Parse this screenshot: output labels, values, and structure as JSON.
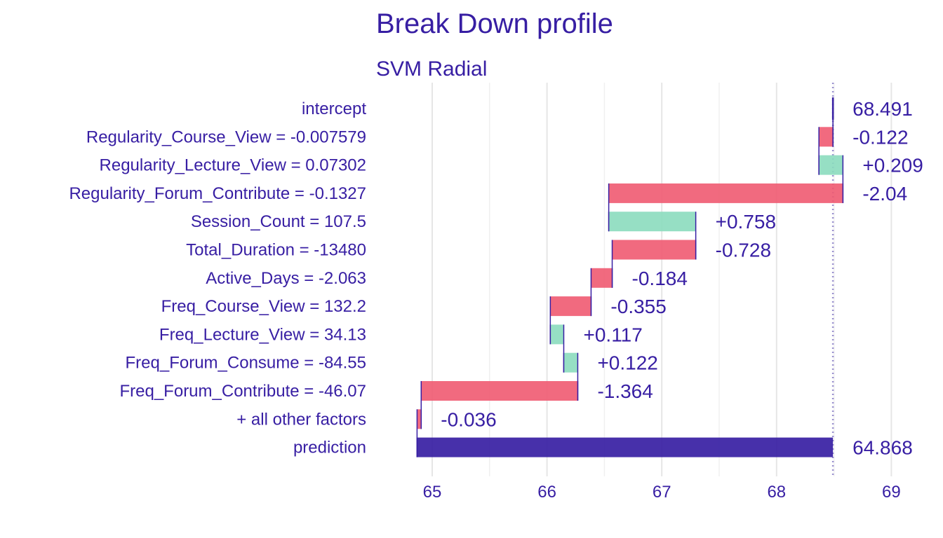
{
  "chart_data": {
    "type": "bar",
    "title": "Break Down profile",
    "subtitle": "SVM Radial",
    "xlabel": "",
    "ylabel": "",
    "xlim": [
      64.86,
      69.1
    ],
    "xticks": [
      "65",
      "66",
      "67",
      "68",
      "69"
    ],
    "grid": true,
    "legend": "none",
    "intercept_value": 68.491,
    "prediction_value": 64.868,
    "colors": {
      "positive": "#8bdcbe",
      "negative": "#f05a71",
      "prediction": "#371ea3",
      "text": "#371ea3",
      "grid": "#e6e6e6",
      "reference_line": "#9b91cf"
    },
    "rows": [
      {
        "label": "intercept",
        "kind": "intercept",
        "start": 68.491,
        "end": 68.491,
        "value_label": "68.491"
      },
      {
        "label": "Regularity_Course_View = -0.007579",
        "kind": "negative",
        "start": 68.491,
        "end": 68.369,
        "value_label": "-0.122"
      },
      {
        "label": "Regularity_Lecture_View = 0.07302",
        "kind": "positive",
        "start": 68.369,
        "end": 68.578,
        "value_label": "+0.209"
      },
      {
        "label": "Regularity_Forum_Contribute = -0.1327",
        "kind": "negative",
        "start": 68.578,
        "end": 66.538,
        "value_label": "-2.04"
      },
      {
        "label": "Session_Count = 107.5",
        "kind": "positive",
        "start": 66.538,
        "end": 67.296,
        "value_label": "+0.758"
      },
      {
        "label": "Total_Duration = -13480",
        "kind": "negative",
        "start": 67.296,
        "end": 66.568,
        "value_label": "-0.728"
      },
      {
        "label": "Active_Days = -2.063",
        "kind": "negative",
        "start": 66.568,
        "end": 66.384,
        "value_label": "-0.184"
      },
      {
        "label": "Freq_Course_View = 132.2",
        "kind": "negative",
        "start": 66.384,
        "end": 66.029,
        "value_label": "-0.355"
      },
      {
        "label": "Freq_Lecture_View = 34.13",
        "kind": "positive",
        "start": 66.029,
        "end": 66.146,
        "value_label": "+0.117"
      },
      {
        "label": "Freq_Forum_Consume = -84.55",
        "kind": "positive",
        "start": 66.146,
        "end": 66.268,
        "value_label": "+0.122"
      },
      {
        "label": "Freq_Forum_Contribute = -46.07",
        "kind": "negative",
        "start": 66.268,
        "end": 64.904,
        "value_label": "-1.364"
      },
      {
        "label": "+ all other factors",
        "kind": "negative",
        "start": 64.904,
        "end": 64.868,
        "value_label": "-0.036"
      },
      {
        "label": "prediction",
        "kind": "prediction",
        "start": 64.868,
        "end": 68.491,
        "value_label": "64.868"
      }
    ]
  }
}
